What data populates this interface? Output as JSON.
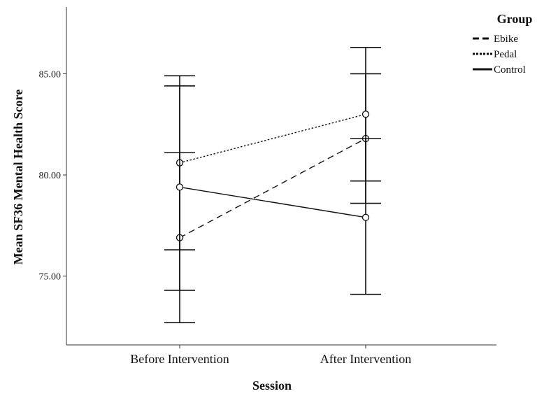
{
  "chart_data": {
    "type": "line",
    "title": "",
    "xlabel": "Session",
    "ylabel": "Mean SF36 Mental Health Score",
    "categories": [
      "Before Intervention",
      "After Intervention"
    ],
    "y_ticks": [
      "75.00",
      "80.00",
      "85.00"
    ],
    "ylim": [
      71.6,
      88.3
    ],
    "grid": false,
    "legend": {
      "title": "Group",
      "position": "top-right"
    },
    "series": [
      {
        "name": "Ebike",
        "values": [
          76.9,
          81.8
        ],
        "error_low": [
          72.7,
          78.6
        ],
        "error_high": [
          81.1,
          85.0
        ],
        "line_style": "dashed"
      },
      {
        "name": "Pedal",
        "values": [
          80.6,
          83.0
        ],
        "error_low": [
          76.3,
          79.7
        ],
        "error_high": [
          84.9,
          86.3
        ],
        "line_style": "dotted"
      },
      {
        "name": "Control",
        "values": [
          79.4,
          77.9
        ],
        "error_low": [
          74.3,
          74.1
        ],
        "error_high": [
          84.4,
          81.8
        ],
        "line_style": "solid"
      }
    ],
    "colors": {
      "line": "#111111",
      "axis": "#333333"
    }
  }
}
